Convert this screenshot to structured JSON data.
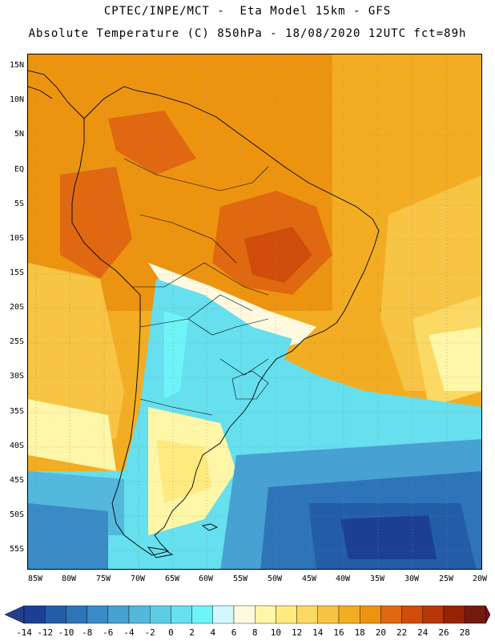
{
  "title": {
    "line1": "CPTEC/INPE/MCT -  Eta Model 15km - GFS",
    "line2": "Absolute Temperature (C) 850hPa - 18/08/2020 12UTC fct=89h"
  },
  "axes": {
    "lat_labels": [
      "15N",
      "10N",
      "5N",
      "EQ",
      "5S",
      "10S",
      "15S",
      "20S",
      "25S",
      "30S",
      "35S",
      "40S",
      "45S",
      "50S",
      "55S"
    ],
    "lon_labels": [
      "85W",
      "80W",
      "75W",
      "70W",
      "65W",
      "60W",
      "55W",
      "50W",
      "45W",
      "40W",
      "35W",
      "30W",
      "25W",
      "20W"
    ]
  },
  "colorbar": {
    "labels": [
      "-14",
      "-12",
      "-10",
      "-8",
      "-6",
      "-4",
      "-2",
      "0",
      "2",
      "4",
      "6",
      "8",
      "10",
      "12",
      "14",
      "16",
      "18",
      "20",
      "22",
      "24",
      "26",
      "28"
    ],
    "colors": [
      "#1c3f94",
      "#235da8",
      "#2e74b8",
      "#3a8ac6",
      "#47a1d2",
      "#52b8dc",
      "#5dcde6",
      "#66dfee",
      "#6ef4f8",
      "#d2f8fc",
      "#fff9e0",
      "#fff6a8",
      "#ffea80",
      "#fbd964",
      "#f7c444",
      "#f3ad22",
      "#ec9410",
      "#e06810",
      "#d04c0a",
      "#b83506",
      "#962303",
      "#731a10"
    ],
    "under_color": "#233f8c",
    "over_color": "#7a0d26"
  },
  "map": {
    "land_color": "#000000",
    "grid_color": "#8a8a8a"
  }
}
